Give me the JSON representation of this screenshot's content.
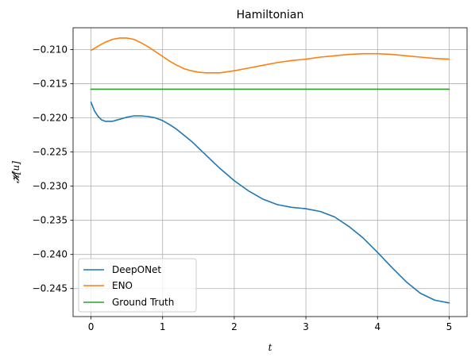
{
  "chart_data": {
    "type": "line",
    "title": "Hamiltonian",
    "xlabel": "t",
    "ylabel": "𝓗[u]",
    "xlim": [
      -0.25,
      5.25
    ],
    "ylim": [
      -0.2491,
      -0.2068
    ],
    "xticks": [
      0,
      1,
      2,
      3,
      4,
      5
    ],
    "xtick_labels": [
      "0",
      "1",
      "2",
      "3",
      "4",
      "5"
    ],
    "yticks": [
      -0.21,
      -0.215,
      -0.22,
      -0.225,
      -0.23,
      -0.235,
      -0.24,
      -0.245
    ],
    "ytick_labels": [
      "−0.210",
      "−0.215",
      "−0.220",
      "−0.225",
      "−0.230",
      "−0.235",
      "−0.240",
      "−0.245"
    ],
    "grid": true,
    "legend_position": "lower-left",
    "series": [
      {
        "name": "DeepONet",
        "color": "#1f77b4",
        "x": [
          0,
          0.05,
          0.1,
          0.15,
          0.2,
          0.3,
          0.4,
          0.5,
          0.6,
          0.7,
          0.8,
          0.9,
          1.0,
          1.1,
          1.2,
          1.4,
          1.6,
          1.8,
          2.0,
          2.2,
          2.4,
          2.6,
          2.8,
          3.0,
          3.2,
          3.4,
          3.6,
          3.8,
          4.0,
          4.2,
          4.4,
          4.6,
          4.8,
          5.0
        ],
        "y": [
          -0.2177,
          -0.219,
          -0.2198,
          -0.2203,
          -0.2205,
          -0.2205,
          -0.2202,
          -0.2199,
          -0.2197,
          -0.2197,
          -0.2198,
          -0.22,
          -0.2204,
          -0.221,
          -0.2217,
          -0.2234,
          -0.2254,
          -0.2274,
          -0.2292,
          -0.2307,
          -0.2319,
          -0.2327,
          -0.2331,
          -0.2333,
          -0.2337,
          -0.2345,
          -0.2359,
          -0.2376,
          -0.2397,
          -0.2419,
          -0.244,
          -0.2457,
          -0.2467,
          -0.2471
        ]
      },
      {
        "name": "ENO",
        "color": "#ff7f0e",
        "x": [
          0,
          0.1,
          0.2,
          0.3,
          0.4,
          0.5,
          0.6,
          0.7,
          0.8,
          0.9,
          1.0,
          1.1,
          1.2,
          1.3,
          1.4,
          1.5,
          1.6,
          1.7,
          1.8,
          2.0,
          2.2,
          2.4,
          2.6,
          2.8,
          3.0,
          3.2,
          3.4,
          3.6,
          3.8,
          4.0,
          4.2,
          4.4,
          4.6,
          4.8,
          5.0
        ],
        "y": [
          -0.2101,
          -0.2095,
          -0.2089,
          -0.2085,
          -0.2083,
          -0.2083,
          -0.2085,
          -0.209,
          -0.2096,
          -0.2103,
          -0.211,
          -0.2117,
          -0.2123,
          -0.2128,
          -0.2131,
          -0.2133,
          -0.2134,
          -0.2134,
          -0.2134,
          -0.2131,
          -0.2127,
          -0.2123,
          -0.2119,
          -0.2116,
          -0.2114,
          -0.2111,
          -0.2109,
          -0.2107,
          -0.2106,
          -0.2106,
          -0.2107,
          -0.2109,
          -0.2111,
          -0.2113,
          -0.2114
        ]
      },
      {
        "name": "Ground Truth",
        "color": "#2ca02c",
        "x": [
          0,
          5
        ],
        "y": [
          -0.2158,
          -0.2158
        ]
      }
    ]
  }
}
